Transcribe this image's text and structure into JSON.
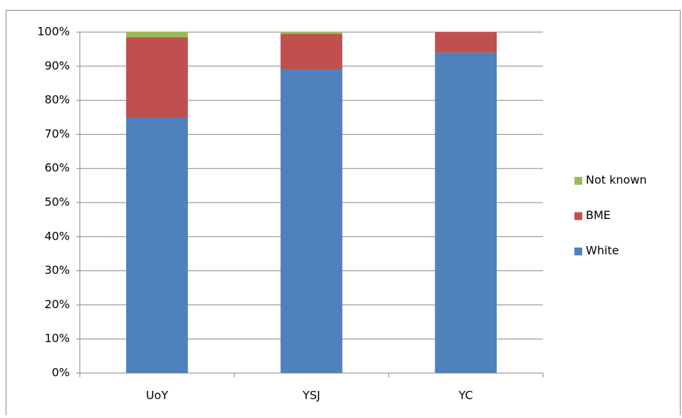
{
  "chart_data": {
    "type": "stacked_bar",
    "categories": [
      "UoY",
      "YSJ",
      "YC"
    ],
    "series": [
      {
        "name": "White",
        "color": "#4f81bd",
        "values": [
          75,
          89,
          94
        ]
      },
      {
        "name": "BME",
        "color": "#c0504d",
        "values": [
          23.5,
          10.5,
          6
        ]
      },
      {
        "name": "Not known",
        "color": "#9bbb59",
        "values": [
          1.5,
          0.5,
          0
        ]
      }
    ],
    "ylim": [
      0,
      100
    ],
    "yticks": [
      {
        "value": 0,
        "label": "0%"
      },
      {
        "value": 10,
        "label": "10%"
      },
      {
        "value": 20,
        "label": "20%"
      },
      {
        "value": 30,
        "label": "30%"
      },
      {
        "value": 40,
        "label": "40%"
      },
      {
        "value": 50,
        "label": "50%"
      },
      {
        "value": 60,
        "label": "60%"
      },
      {
        "value": 70,
        "label": "70%"
      },
      {
        "value": 80,
        "label": "80%"
      },
      {
        "value": 90,
        "label": "90%"
      },
      {
        "value": 100,
        "label": "100%"
      }
    ],
    "grid": true,
    "legend": "right"
  }
}
